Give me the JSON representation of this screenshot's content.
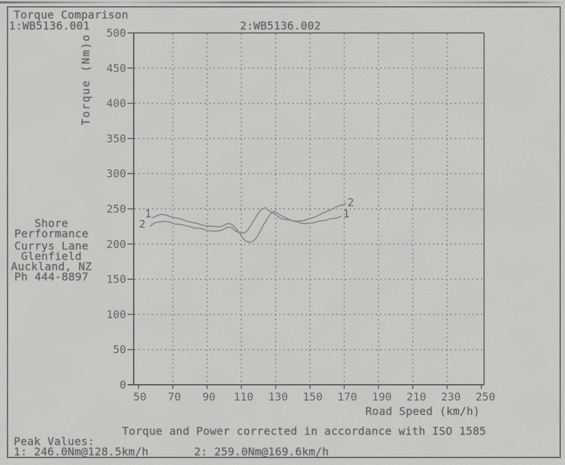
{
  "page": {
    "title": "Torque Comparison",
    "run1_label": "1:WB5136.001",
    "run2_label": "2:WB5136.002",
    "info_block": [
      "Shore",
      "Performance",
      "Currys Lane",
      "Glenfield",
      "Auckland, NZ",
      "Ph 444-8897"
    ],
    "footer_note": "Torque and Power corrected in accordance with ISO 1585",
    "peak_values": {
      "heading": "Peak Values:",
      "run1": "1: 246.0Nm@128.5km/h",
      "run2": "2: 259.0Nm@169.6km/h"
    }
  },
  "colors": {
    "paper": "#d7d6d3",
    "ink": "#616161",
    "grid": "#7e7e7e",
    "axis": "#606060",
    "curve": "#8f8f8f"
  },
  "chart_data": {
    "type": "line",
    "title": "Torque Comparison",
    "xlabel": "Road Speed (km/h)",
    "ylabel": "Torque (Nm)o",
    "xlim": [
      50,
      250
    ],
    "ylim": [
      0,
      500
    ],
    "x_ticks": [
      50,
      70,
      90,
      110,
      130,
      150,
      170,
      190,
      210,
      230,
      250
    ],
    "y_ticks": [
      0,
      50,
      100,
      150,
      200,
      250,
      300,
      350,
      400,
      450,
      500
    ],
    "grid": "dotted",
    "series": [
      {
        "name": "1",
        "file": "WB5136.001",
        "peak": "246.0Nm@128.5km/h",
        "points": [
          [
            58,
            237
          ],
          [
            60,
            240
          ],
          [
            63,
            242
          ],
          [
            66,
            241
          ],
          [
            69,
            239
          ],
          [
            72,
            237
          ],
          [
            75,
            235
          ],
          [
            78,
            233
          ],
          [
            81,
            231
          ],
          [
            84,
            229
          ],
          [
            87,
            227
          ],
          [
            90,
            226
          ],
          [
            93,
            225
          ],
          [
            96,
            224
          ],
          [
            99,
            226
          ],
          [
            101,
            228
          ],
          [
            103,
            229
          ],
          [
            105,
            227
          ],
          [
            107,
            222
          ],
          [
            109,
            215
          ],
          [
            111,
            208
          ],
          [
            113,
            204
          ],
          [
            115,
            202
          ],
          [
            117,
            204
          ],
          [
            119,
            210
          ],
          [
            121,
            218
          ],
          [
            123,
            227
          ],
          [
            125,
            236
          ],
          [
            127,
            243
          ],
          [
            129,
            246
          ],
          [
            131,
            244
          ],
          [
            133,
            241
          ],
          [
            135,
            238
          ],
          [
            137,
            236
          ],
          [
            139,
            234
          ],
          [
            141,
            232
          ],
          [
            143,
            231
          ],
          [
            145,
            230
          ],
          [
            147,
            229
          ],
          [
            149,
            229
          ],
          [
            151,
            230
          ],
          [
            153,
            231
          ],
          [
            155,
            232
          ],
          [
            157,
            233
          ],
          [
            159,
            234
          ],
          [
            161,
            235
          ],
          [
            163,
            236
          ],
          [
            165,
            237
          ],
          [
            167,
            238
          ],
          [
            168,
            239
          ]
        ]
      },
      {
        "name": "2",
        "file": "WB5136.002",
        "peak": "259.0Nm@169.6km/h",
        "points": [
          [
            57,
            226
          ],
          [
            59,
            229
          ],
          [
            61,
            231
          ],
          [
            63,
            232
          ],
          [
            65,
            232
          ],
          [
            68,
            231
          ],
          [
            71,
            229
          ],
          [
            74,
            228
          ],
          [
            77,
            226
          ],
          [
            80,
            225
          ],
          [
            83,
            223
          ],
          [
            86,
            222
          ],
          [
            89,
            220
          ],
          [
            92,
            219
          ],
          [
            95,
            218
          ],
          [
            98,
            219
          ],
          [
            100,
            222
          ],
          [
            102,
            224
          ],
          [
            104,
            223
          ],
          [
            106,
            220
          ],
          [
            108,
            217
          ],
          [
            110,
            215
          ],
          [
            112,
            216
          ],
          [
            114,
            221
          ],
          [
            116,
            228
          ],
          [
            118,
            236
          ],
          [
            120,
            245
          ],
          [
            122,
            250
          ],
          [
            124,
            251
          ],
          [
            126,
            248
          ],
          [
            128,
            245
          ],
          [
            130,
            241
          ],
          [
            132,
            238
          ],
          [
            134,
            236
          ],
          [
            137,
            234
          ],
          [
            140,
            233
          ],
          [
            143,
            233
          ],
          [
            146,
            233
          ],
          [
            149,
            235
          ],
          [
            152,
            238
          ],
          [
            155,
            241
          ],
          [
            158,
            244
          ],
          [
            161,
            248
          ],
          [
            164,
            251
          ],
          [
            166,
            253
          ],
          [
            168,
            255
          ],
          [
            170,
            257
          ],
          [
            171,
            258
          ]
        ]
      }
    ]
  }
}
